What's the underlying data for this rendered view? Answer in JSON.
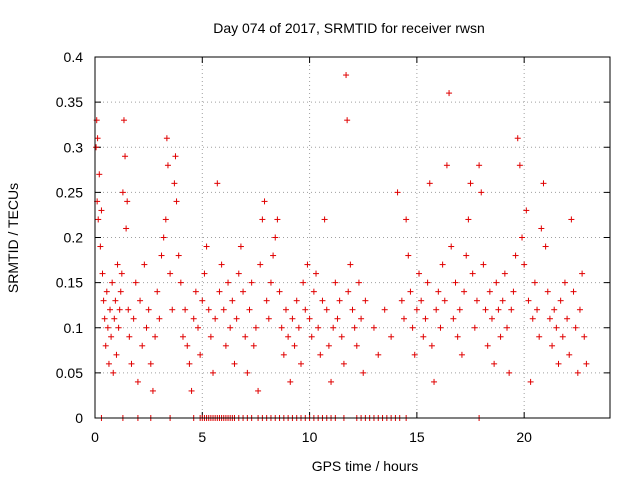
{
  "chart_data": {
    "type": "scatter",
    "title": "Day 074 of 2017, SRMTID for receiver rwsn",
    "xlabel": "GPS time / hours",
    "ylabel": "SRMTID / TECUs",
    "xlim": [
      0,
      24
    ],
    "ylim": [
      0,
      0.4
    ],
    "xticks": [
      0,
      5,
      10,
      15,
      20
    ],
    "xtick_labels": [
      "0",
      "5",
      "10",
      "15",
      "20"
    ],
    "yticks": [
      0,
      0.05,
      0.1,
      0.15,
      0.2,
      0.25,
      0.3,
      0.35,
      0.4
    ],
    "ytick_labels": [
      "0",
      "0.05",
      "0.1",
      "0.15",
      "0.2",
      "0.25",
      "0.3",
      "0.35",
      "0.4"
    ],
    "grid": true,
    "marker": "plus",
    "color": "#e00000",
    "series": [
      {
        "name": "SRMTID",
        "points": [
          [
            0.05,
            0.3
          ],
          [
            0.08,
            0.33
          ],
          [
            0.12,
            0.31
          ],
          [
            0.1,
            0.24
          ],
          [
            0.15,
            0.22
          ],
          [
            0.2,
            0.27
          ],
          [
            0.25,
            0.19
          ],
          [
            0.3,
            0.23
          ],
          [
            0.35,
            0.16
          ],
          [
            0.4,
            0.13
          ],
          [
            0.45,
            0.11
          ],
          [
            0.5,
            0.08
          ],
          [
            0.55,
            0.14
          ],
          [
            0.6,
            0.1
          ],
          [
            0.65,
            0.06
          ],
          [
            0.7,
            0.12
          ],
          [
            0.75,
            0.09
          ],
          [
            0.8,
            0.15
          ],
          [
            0.85,
            0.05
          ],
          [
            0.9,
            0.11
          ],
          [
            0.95,
            0.13
          ],
          [
            1.0,
            0.07
          ],
          [
            1.05,
            0.17
          ],
          [
            1.1,
            0.1
          ],
          [
            1.15,
            0.12
          ],
          [
            1.2,
            0.14
          ],
          [
            1.25,
            0.16
          ],
          [
            1.3,
            0.25
          ],
          [
            1.35,
            0.33
          ],
          [
            1.4,
            0.29
          ],
          [
            1.45,
            0.21
          ],
          [
            1.5,
            0.24
          ],
          [
            1.55,
            0.12
          ],
          [
            1.6,
            0.09
          ],
          [
            1.7,
            0.06
          ],
          [
            1.8,
            0.11
          ],
          [
            1.9,
            0.15
          ],
          [
            2.0,
            0.04
          ],
          [
            2.1,
            0.13
          ],
          [
            2.2,
            0.08
          ],
          [
            2.3,
            0.17
          ],
          [
            2.4,
            0.1
          ],
          [
            2.5,
            0.12
          ],
          [
            2.6,
            0.06
          ],
          [
            2.7,
            0.03
          ],
          [
            2.8,
            0.09
          ],
          [
            2.9,
            0.14
          ],
          [
            3.0,
            0.11
          ],
          [
            3.1,
            0.18
          ],
          [
            3.2,
            0.2
          ],
          [
            3.3,
            0.22
          ],
          [
            3.35,
            0.31
          ],
          [
            3.4,
            0.28
          ],
          [
            3.5,
            0.16
          ],
          [
            3.6,
            0.12
          ],
          [
            3.7,
            0.26
          ],
          [
            3.75,
            0.29
          ],
          [
            3.8,
            0.24
          ],
          [
            3.9,
            0.18
          ],
          [
            4.0,
            0.15
          ],
          [
            4.1,
            0.09
          ],
          [
            4.2,
            0.12
          ],
          [
            4.3,
            0.08
          ],
          [
            4.4,
            0.06
          ],
          [
            4.5,
            0.03
          ],
          [
            4.6,
            0.11
          ],
          [
            4.7,
            0.14
          ],
          [
            4.8,
            0.1
          ],
          [
            4.9,
            0.07
          ],
          [
            5.0,
            0.13
          ],
          [
            5.1,
            0.16
          ],
          [
            5.2,
            0.19
          ],
          [
            5.3,
            0.12
          ],
          [
            5.4,
            0.09
          ],
          [
            5.5,
            0.05
          ],
          [
            5.6,
            0.11
          ],
          [
            5.7,
            0.26
          ],
          [
            5.8,
            0.14
          ],
          [
            5.9,
            0.17
          ],
          [
            6.0,
            0.12
          ],
          [
            6.1,
            0.08
          ],
          [
            6.2,
            0.15
          ],
          [
            6.3,
            0.1
          ],
          [
            6.4,
            0.13
          ],
          [
            6.5,
            0.06
          ],
          [
            6.6,
            0.11
          ],
          [
            6.7,
            0.16
          ],
          [
            6.8,
            0.19
          ],
          [
            6.9,
            0.14
          ],
          [
            7.0,
            0.09
          ],
          [
            7.1,
            0.05
          ],
          [
            7.2,
            0.12
          ],
          [
            7.3,
            0.15
          ],
          [
            7.4,
            0.08
          ],
          [
            7.5,
            0.1
          ],
          [
            7.6,
            0.03
          ],
          [
            7.7,
            0.17
          ],
          [
            7.8,
            0.22
          ],
          [
            7.9,
            0.24
          ],
          [
            8.0,
            0.13
          ],
          [
            8.1,
            0.11
          ],
          [
            8.2,
            0.15
          ],
          [
            8.3,
            0.18
          ],
          [
            8.4,
            0.2
          ],
          [
            8.5,
            0.22
          ],
          [
            8.6,
            0.14
          ],
          [
            8.7,
            0.1
          ],
          [
            8.8,
            0.07
          ],
          [
            8.9,
            0.12
          ],
          [
            9.0,
            0.09
          ],
          [
            9.1,
            0.04
          ],
          [
            9.2,
            0.11
          ],
          [
            9.3,
            0.08
          ],
          [
            9.4,
            0.13
          ],
          [
            9.5,
            0.1
          ],
          [
            9.6,
            0.06
          ],
          [
            9.7,
            0.15
          ],
          [
            9.8,
            0.12
          ],
          [
            9.9,
            0.17
          ],
          [
            10.0,
            0.11
          ],
          [
            10.1,
            0.09
          ],
          [
            10.2,
            0.14
          ],
          [
            10.3,
            0.16
          ],
          [
            10.4,
            0.1
          ],
          [
            10.5,
            0.07
          ],
          [
            10.6,
            0.13
          ],
          [
            10.7,
            0.22
          ],
          [
            10.8,
            0.12
          ],
          [
            10.9,
            0.08
          ],
          [
            11.0,
            0.04
          ],
          [
            11.1,
            0.1
          ],
          [
            11.2,
            0.15
          ],
          [
            11.3,
            0.11
          ],
          [
            11.4,
            0.13
          ],
          [
            11.5,
            0.09
          ],
          [
            11.6,
            0.06
          ],
          [
            11.7,
            0.38
          ],
          [
            11.75,
            0.33
          ],
          [
            11.8,
            0.14
          ],
          [
            11.9,
            0.17
          ],
          [
            12.0,
            0.12
          ],
          [
            12.1,
            0.1
          ],
          [
            12.2,
            0.08
          ],
          [
            12.3,
            0.15
          ],
          [
            12.4,
            0.11
          ],
          [
            12.5,
            0.05
          ],
          [
            12.6,
            0.13
          ],
          [
            13.0,
            0.1
          ],
          [
            13.2,
            0.07
          ],
          [
            13.5,
            0.12
          ],
          [
            13.8,
            0.09
          ],
          [
            14.1,
            0.25
          ],
          [
            14.3,
            0.13
          ],
          [
            14.4,
            0.11
          ],
          [
            14.5,
            0.22
          ],
          [
            14.6,
            0.18
          ],
          [
            14.7,
            0.14
          ],
          [
            14.8,
            0.1
          ],
          [
            14.9,
            0.07
          ],
          [
            15.0,
            0.12
          ],
          [
            15.1,
            0.16
          ],
          [
            15.2,
            0.13
          ],
          [
            15.3,
            0.09
          ],
          [
            15.4,
            0.11
          ],
          [
            15.5,
            0.15
          ],
          [
            15.6,
            0.26
          ],
          [
            15.7,
            0.08
          ],
          [
            15.8,
            0.04
          ],
          [
            15.9,
            0.12
          ],
          [
            16.0,
            0.14
          ],
          [
            16.1,
            0.1
          ],
          [
            16.2,
            0.17
          ],
          [
            16.3,
            0.13
          ],
          [
            16.4,
            0.28
          ],
          [
            16.5,
            0.36
          ],
          [
            16.6,
            0.19
          ],
          [
            16.7,
            0.11
          ],
          [
            16.8,
            0.15
          ],
          [
            16.9,
            0.09
          ],
          [
            17.0,
            0.12
          ],
          [
            17.1,
            0.07
          ],
          [
            17.2,
            0.14
          ],
          [
            17.3,
            0.18
          ],
          [
            17.4,
            0.22
          ],
          [
            17.5,
            0.26
          ],
          [
            17.6,
            0.16
          ],
          [
            17.7,
            0.1
          ],
          [
            17.8,
            0.13
          ],
          [
            17.9,
            0.28
          ],
          [
            18.0,
            0.25
          ],
          [
            18.1,
            0.17
          ],
          [
            18.2,
            0.12
          ],
          [
            18.3,
            0.08
          ],
          [
            18.4,
            0.14
          ],
          [
            18.5,
            0.11
          ],
          [
            18.6,
            0.06
          ],
          [
            18.7,
            0.15
          ],
          [
            18.8,
            0.12
          ],
          [
            18.9,
            0.09
          ],
          [
            19.0,
            0.13
          ],
          [
            19.1,
            0.16
          ],
          [
            19.2,
            0.1
          ],
          [
            19.3,
            0.05
          ],
          [
            19.4,
            0.12
          ],
          [
            19.5,
            0.14
          ],
          [
            19.6,
            0.18
          ],
          [
            19.7,
            0.31
          ],
          [
            19.8,
            0.28
          ],
          [
            19.9,
            0.2
          ],
          [
            20.0,
            0.17
          ],
          [
            20.1,
            0.23
          ],
          [
            20.2,
            0.13
          ],
          [
            20.3,
            0.04
          ],
          [
            20.4,
            0.11
          ],
          [
            20.5,
            0.15
          ],
          [
            20.6,
            0.12
          ],
          [
            20.7,
            0.09
          ],
          [
            20.8,
            0.21
          ],
          [
            20.9,
            0.26
          ],
          [
            21.0,
            0.19
          ],
          [
            21.1,
            0.14
          ],
          [
            21.2,
            0.11
          ],
          [
            21.3,
            0.08
          ],
          [
            21.4,
            0.12
          ],
          [
            21.5,
            0.1
          ],
          [
            21.6,
            0.06
          ],
          [
            21.7,
            0.13
          ],
          [
            21.8,
            0.09
          ],
          [
            21.9,
            0.15
          ],
          [
            22.0,
            0.11
          ],
          [
            22.1,
            0.07
          ],
          [
            22.2,
            0.22
          ],
          [
            22.3,
            0.14
          ],
          [
            22.4,
            0.1
          ],
          [
            22.5,
            0.05
          ],
          [
            22.6,
            0.12
          ],
          [
            22.7,
            0.16
          ],
          [
            22.8,
            0.09
          ],
          [
            22.9,
            0.06
          ]
        ]
      }
    ],
    "zero_points_x": [
      0.3,
      1.3,
      2.0,
      2.6,
      3.5,
      4.6,
      4.9,
      5.0,
      5.1,
      5.2,
      5.3,
      5.4,
      5.5,
      5.6,
      5.7,
      5.8,
      5.9,
      6.0,
      6.1,
      6.2,
      6.3,
      6.4,
      6.5,
      6.7,
      6.9,
      7.1,
      7.3,
      7.6,
      7.8,
      8.0,
      8.2,
      8.4,
      8.6,
      8.8,
      9.0,
      9.2,
      9.4,
      9.6,
      9.8,
      10.0,
      10.2,
      10.4,
      10.6,
      10.8,
      11.0,
      11.2,
      11.6,
      12.2,
      12.4,
      12.6,
      12.8,
      13.0,
      13.2,
      13.4,
      13.6,
      13.8,
      14.0,
      14.2,
      14.5,
      17.9
    ]
  }
}
